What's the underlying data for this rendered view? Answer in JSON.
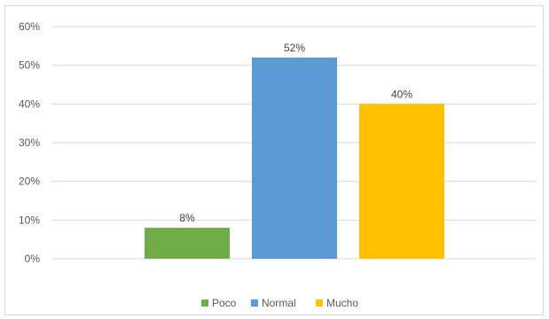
{
  "chart_data": {
    "type": "bar",
    "categories": [
      "Poco",
      "Normal",
      "Mucho"
    ],
    "values": [
      8,
      52,
      40
    ],
    "data_labels": [
      "8%",
      "52%",
      "40%"
    ],
    "colors": [
      "#70AD47",
      "#5B9BD5",
      "#FFC000"
    ],
    "ylim": [
      0,
      60
    ],
    "yticks": [
      0,
      10,
      20,
      30,
      40,
      50,
      60
    ],
    "ytick_labels": [
      "0%",
      "10%",
      "20%",
      "30%",
      "40%",
      "50%",
      "60%"
    ],
    "grid": true,
    "legend": {
      "placement": "bottom",
      "entries": [
        "Poco",
        "Normal",
        "Mucho"
      ]
    }
  }
}
